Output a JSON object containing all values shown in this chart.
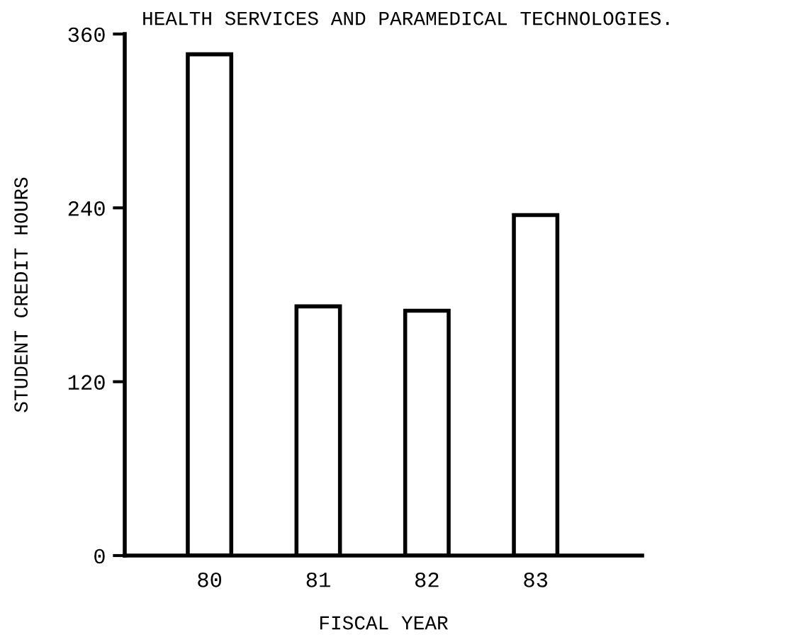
{
  "chart_data": {
    "type": "bar",
    "title": "HEALTH SERVICES AND PARAMEDICAL TECHNOLOGIES.",
    "xlabel": "FISCAL YEAR",
    "ylabel": "STUDENT CREDIT HOURS",
    "categories": [
      "80",
      "81",
      "82",
      "83"
    ],
    "values": [
      346,
      172,
      169,
      235
    ],
    "color": "#ffffff",
    "ylim": [
      0,
      360
    ],
    "yticks": [
      0,
      120,
      240,
      360
    ],
    "grid": false
  }
}
